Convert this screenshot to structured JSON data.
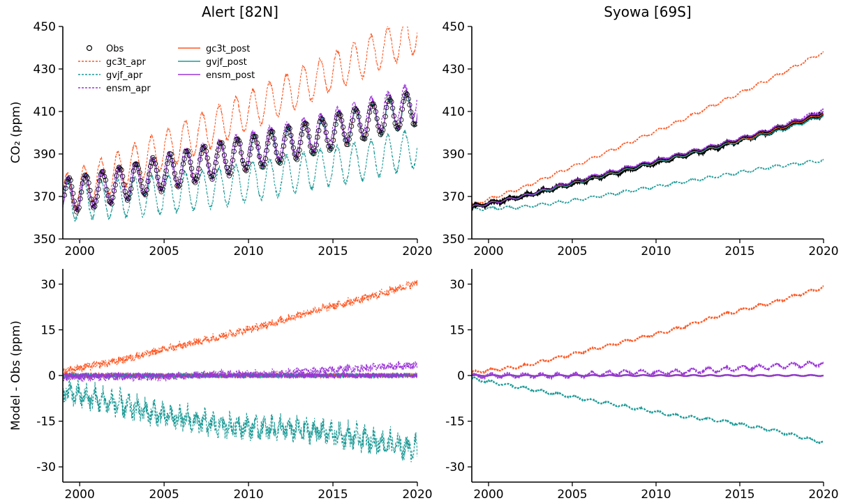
{
  "figure": {
    "ylabel_top": "CO₂ (ppm)",
    "ylabel_bottom": "Model - Obs (ppm)"
  },
  "legend": [
    {
      "label": "Obs",
      "color": "#000000",
      "style": "marker"
    },
    {
      "label": "gc3t_apr",
      "color": "#ff5722",
      "style": "dashed"
    },
    {
      "label": "gvjf_apr",
      "color": "#1a9a96",
      "style": "dashed"
    },
    {
      "label": "ensm_apr",
      "color": "#9b35d8",
      "style": "dashed"
    },
    {
      "label": "gc3t_post",
      "color": "#ff5722",
      "style": "solid"
    },
    {
      "label": "gvjf_post",
      "color": "#1a9a96",
      "style": "solid"
    },
    {
      "label": "ensm_post",
      "color": "#9b35d8",
      "style": "solid"
    }
  ],
  "chart_data": [
    {
      "type": "line",
      "title": "Alert [82N]",
      "ylabel": "CO₂ (ppm)",
      "xlim": [
        1999,
        2020
      ],
      "ylim": [
        350,
        450
      ],
      "xticks": [
        "2000",
        "2005",
        "2010",
        "2015",
        "2020"
      ],
      "yticks": [
        "350",
        "370",
        "390",
        "410",
        "430",
        "450"
      ],
      "seasonal": true,
      "x": [
        1999,
        2002,
        2005,
        2008,
        2011,
        2014,
        2017,
        2020
      ],
      "series": [
        {
          "name": "Obs",
          "values": [
            370,
            375,
            381,
            387,
            392,
            398,
            405,
            412
          ]
        },
        {
          "name": "gc3t_apr",
          "values": [
            371,
            381,
            392,
            403,
            414,
            425,
            436,
            447
          ]
        },
        {
          "name": "gvjf_apr",
          "values": [
            368,
            369,
            371,
            374,
            378,
            383,
            387,
            393
          ]
        },
        {
          "name": "ensm_apr",
          "values": [
            370,
            375,
            382,
            388,
            394,
            400,
            408,
            416
          ]
        },
        {
          "name": "gc3t_post",
          "values": [
            370,
            375,
            381,
            387,
            392,
            398,
            405,
            412
          ]
        },
        {
          "name": "gvjf_post",
          "values": [
            370,
            375,
            381,
            387,
            392,
            398,
            405,
            412
          ]
        },
        {
          "name": "ensm_post",
          "values": [
            370,
            375,
            381,
            387,
            393,
            399,
            406,
            413
          ]
        }
      ]
    },
    {
      "type": "line",
      "title": "Syowa [69S]",
      "xlim": [
        1999,
        2020
      ],
      "ylim": [
        350,
        450
      ],
      "xticks": [
        "2000",
        "2005",
        "2010",
        "2015",
        "2020"
      ],
      "yticks": [
        "350",
        "370",
        "390",
        "410",
        "430",
        "450"
      ],
      "seasonal": false,
      "x": [
        1999,
        2002,
        2005,
        2008,
        2011,
        2014,
        2017,
        2020
      ],
      "series": [
        {
          "name": "Obs",
          "values": [
            365,
            370,
            376,
            382,
            388,
            394,
            401,
            409
          ]
        },
        {
          "name": "gc3t_apr",
          "values": [
            366,
            374,
            384,
            394,
            404,
            415,
            426,
            438
          ]
        },
        {
          "name": "gvjf_apr",
          "values": [
            364,
            365,
            368,
            372,
            376,
            380,
            384,
            387
          ]
        },
        {
          "name": "ensm_apr",
          "values": [
            365,
            370,
            377,
            383,
            389,
            395,
            402,
            411
          ]
        },
        {
          "name": "gc3t_post",
          "values": [
            365,
            370,
            376,
            382,
            388,
            394,
            401,
            409
          ]
        },
        {
          "name": "gvjf_post",
          "values": [
            365,
            370,
            376,
            382,
            388,
            394,
            400,
            408
          ]
        },
        {
          "name": "ensm_post",
          "values": [
            365,
            370,
            377,
            383,
            389,
            395,
            402,
            410
          ]
        }
      ]
    },
    {
      "type": "line",
      "ylabel": "Model - Obs (ppm)",
      "xlim": [
        1999,
        2020
      ],
      "ylim": [
        -35,
        35
      ],
      "xticks": [
        "2000",
        "2005",
        "2010",
        "2015",
        "2020"
      ],
      "yticks": [
        "-30",
        "-15",
        "0",
        "15",
        "30"
      ],
      "seasonal": true,
      "x": [
        1999,
        2002,
        2005,
        2008,
        2011,
        2014,
        2017,
        2020
      ],
      "series": [
        {
          "name": "gc3t_apr",
          "values": [
            2,
            5,
            9,
            13,
            17,
            22,
            26,
            31
          ]
        },
        {
          "name": "gvjf_apr",
          "values": [
            -2,
            -6,
            -10,
            -13,
            -14,
            -15,
            -18,
            -21
          ]
        },
        {
          "name": "ensm_apr",
          "values": [
            0,
            0,
            0,
            1,
            1,
            2,
            3,
            4
          ]
        },
        {
          "name": "gc3t_post",
          "values": [
            0,
            0,
            0,
            0,
            0,
            0,
            0,
            0
          ]
        },
        {
          "name": "gvjf_post",
          "values": [
            0,
            0,
            0,
            0,
            0,
            0,
            0,
            0
          ]
        },
        {
          "name": "ensm_post",
          "values": [
            0,
            0,
            0,
            0,
            0,
            0,
            0,
            0
          ]
        }
      ]
    },
    {
      "type": "line",
      "xlim": [
        1999,
        2020
      ],
      "ylim": [
        -35,
        35
      ],
      "xticks": [
        "2000",
        "2005",
        "2010",
        "2015",
        "2020"
      ],
      "yticks": [
        "-30",
        "-15",
        "0",
        "15",
        "30"
      ],
      "seasonal": false,
      "x": [
        1999,
        2002,
        2005,
        2008,
        2011,
        2014,
        2017,
        2020
      ],
      "series": [
        {
          "name": "gc3t_apr",
          "values": [
            1,
            3,
            7,
            11,
            15,
            20,
            24,
            29
          ]
        },
        {
          "name": "gvjf_apr",
          "values": [
            -1,
            -4,
            -7,
            -10,
            -13,
            -15,
            -18,
            -22
          ]
        },
        {
          "name": "ensm_apr",
          "values": [
            0,
            0,
            0,
            1,
            1,
            2,
            3,
            4
          ]
        },
        {
          "name": "gc3t_post",
          "values": [
            0,
            0,
            0,
            0,
            0,
            0,
            0,
            0
          ]
        },
        {
          "name": "gvjf_post",
          "values": [
            0,
            0,
            0,
            0,
            0,
            0,
            0,
            0
          ]
        },
        {
          "name": "ensm_post",
          "values": [
            0,
            0,
            0,
            0,
            0,
            0,
            0,
            0
          ]
        }
      ]
    }
  ]
}
